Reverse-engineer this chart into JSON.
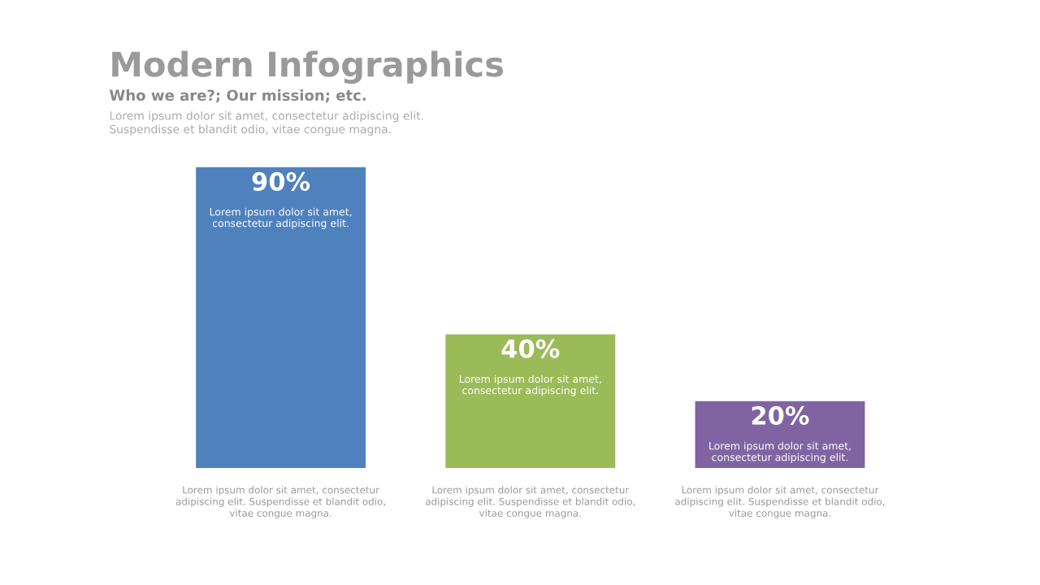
{
  "chart_data": {
    "type": "bar",
    "title": "Modern Infographics",
    "subtitle": "Who we are?; Our mission; etc.",
    "categories": [
      null,
      null,
      null
    ],
    "values": [
      90,
      40,
      20
    ],
    "colors": [
      "#4f81bd",
      "#9bbb59",
      "#8064a2"
    ],
    "value_labels": [
      "90%",
      "40%",
      "20%"
    ],
    "tick_labels": false,
    "annotations": [
      "Lorem ipsum dolor sit amet, consectetur adipiscing elit.\nSuspendisse et blandit odio, vitae congue magna.",
      "Lorem ipsum dolor sit amet,\nconsectetur adipiscing elit.",
      "Lorem ipsum dolor sit amet,\nconsectetur adipiscing elit.",
      "Lorem ipsum dolor sit amet,\nconsectetur adipiscing elit.",
      "Lorem ipsum dolor sit amet, consectetur\nadipiscing elit. Suspendisse et blandit odio,\nvitae congue magna.",
      "Lorem ipsum dolor sit amet, consectetur\nadipiscing elit. Suspendisse et blandit odio,\nvitae congue magna.",
      "Lorem ipsum dolor sit amet, consectetur\nadipiscing elit. Suspendisse et blandit odio,\nvitae congue magna."
    ]
  }
}
